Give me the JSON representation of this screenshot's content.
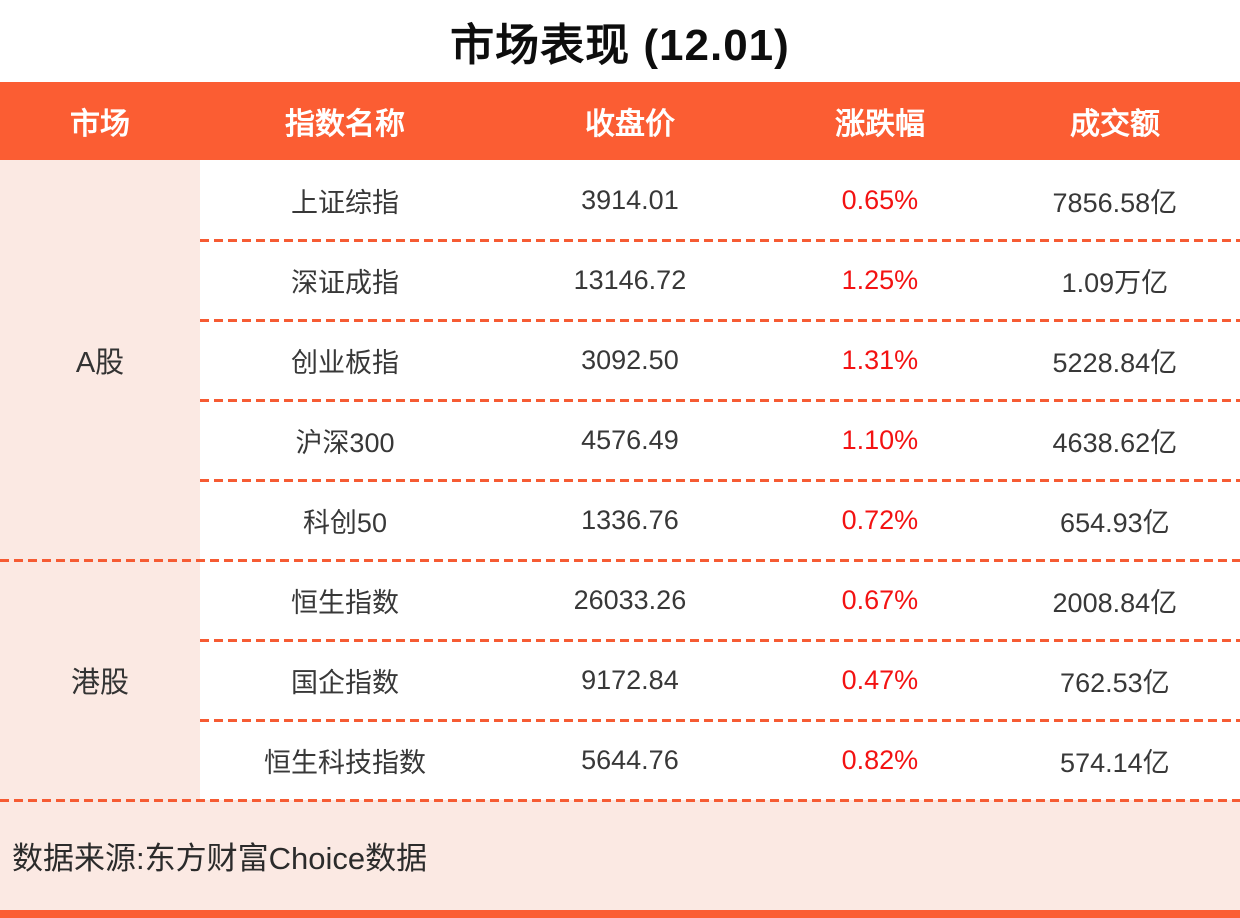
{
  "title": "市场表现 (12.01)",
  "table": {
    "headers": [
      "市场",
      "指数名称",
      "收盘价",
      "涨跌幅",
      "成交额"
    ],
    "groups": [
      {
        "market": "A股",
        "rows": [
          {
            "name": "上证综指",
            "close": "3914.01",
            "change": "0.65%",
            "amount": "7856.58亿"
          },
          {
            "name": "深证成指",
            "close": "13146.72",
            "change": "1.25%",
            "amount": "1.09万亿"
          },
          {
            "name": "创业板指",
            "close": "3092.50",
            "change": "1.31%",
            "amount": "5228.84亿"
          },
          {
            "name": "沪深300",
            "close": "4576.49",
            "change": "1.10%",
            "amount": "4638.62亿"
          },
          {
            "name": "科创50",
            "close": "1336.76",
            "change": "0.72%",
            "amount": "654.93亿"
          }
        ]
      },
      {
        "market": "港股",
        "rows": [
          {
            "name": "恒生指数",
            "close": "26033.26",
            "change": "0.67%",
            "amount": "2008.84亿"
          },
          {
            "name": "国企指数",
            "close": "9172.84",
            "change": "0.47%",
            "amount": "762.53亿"
          },
          {
            "name": "恒生科技指数",
            "close": "5644.76",
            "change": "0.82%",
            "amount": "574.14亿"
          }
        ]
      }
    ]
  },
  "footer": {
    "source": "数据来源:东方财富Choice数据"
  },
  "colors": {
    "accent_orange": "#fb5d33",
    "panel_pink": "#fbe9e3",
    "change_red": "#f31212",
    "text_dark": "#333333"
  },
  "chart_data": {
    "type": "table",
    "title": "市场表现 (12.01)",
    "columns": [
      "市场",
      "指数名称",
      "收盘价",
      "涨跌幅",
      "成交额"
    ],
    "rows": [
      [
        "A股",
        "上证综指",
        3914.01,
        "0.65%",
        "7856.58亿"
      ],
      [
        "A股",
        "深证成指",
        13146.72,
        "1.25%",
        "1.09万亿"
      ],
      [
        "A股",
        "创业板指",
        3092.5,
        "1.31%",
        "5228.84亿"
      ],
      [
        "A股",
        "沪深300",
        4576.49,
        "1.10%",
        "4638.62亿"
      ],
      [
        "A股",
        "科创50",
        1336.76,
        "0.72%",
        "654.93亿"
      ],
      [
        "港股",
        "恒生指数",
        26033.26,
        "0.67%",
        "2008.84亿"
      ],
      [
        "港股",
        "国企指数",
        9172.84,
        "0.47%",
        "762.53亿"
      ],
      [
        "港股",
        "恒生科技指数",
        5644.76,
        "0.82%",
        "574.14亿"
      ]
    ],
    "source": "数据来源:东方财富Choice数据"
  }
}
